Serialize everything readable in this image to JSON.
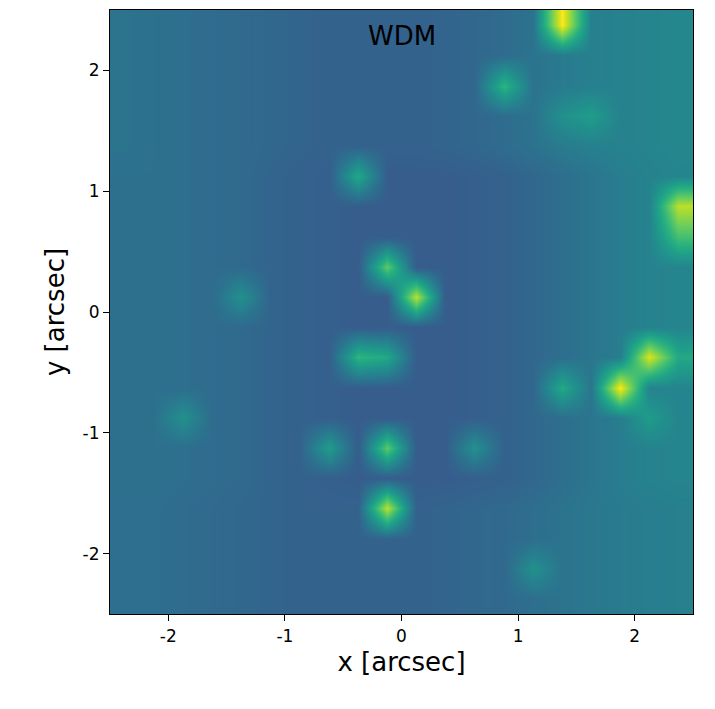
{
  "chart_data": {
    "type": "heatmap",
    "title": "WDM",
    "x_label": "x [arcsec]",
    "y_label": "y [arcsec]",
    "xlim": [
      -2.5,
      2.5
    ],
    "ylim": [
      -2.5,
      2.5
    ],
    "xticks": [
      -2,
      -1,
      0,
      1,
      2
    ],
    "yticks": [
      -2,
      -1,
      0,
      1,
      2
    ],
    "color": "Viridis",
    "cell_range": [
      0,
      1
    ],
    "x": [
      -2.375,
      -2.125,
      -1.875,
      -1.625,
      -1.375,
      -1.125,
      -0.875,
      -0.625,
      -0.375,
      -0.125,
      0.125,
      0.375,
      0.625,
      0.875,
      1.125,
      1.375,
      1.625,
      1.875,
      2.125,
      2.375
    ],
    "y": [
      -2.375,
      -2.125,
      -1.875,
      -1.625,
      -1.375,
      -1.125,
      -0.875,
      -0.625,
      -0.375,
      -0.125,
      0.125,
      0.375,
      0.625,
      0.875,
      1.125,
      1.375,
      1.625,
      1.875,
      2.125,
      2.375
    ],
    "cells": [
      [
        0.36,
        0.36,
        0.35,
        0.34,
        0.33,
        0.32,
        0.31,
        0.31,
        0.31,
        0.31,
        0.31,
        0.32,
        0.33,
        0.34,
        0.36,
        0.38,
        0.4,
        0.41,
        0.42,
        0.43
      ],
      [
        0.36,
        0.36,
        0.35,
        0.34,
        0.33,
        0.32,
        0.31,
        0.31,
        0.31,
        0.31,
        0.31,
        0.32,
        0.33,
        0.34,
        0.5,
        0.38,
        0.4,
        0.41,
        0.42,
        0.43
      ],
      [
        0.36,
        0.36,
        0.35,
        0.34,
        0.33,
        0.32,
        0.31,
        0.31,
        0.31,
        0.31,
        0.31,
        0.32,
        0.33,
        0.34,
        0.36,
        0.38,
        0.4,
        0.41,
        0.42,
        0.43
      ],
      [
        0.36,
        0.36,
        0.35,
        0.34,
        0.33,
        0.32,
        0.31,
        0.31,
        0.31,
        0.9,
        0.31,
        0.32,
        0.33,
        0.34,
        0.36,
        0.38,
        0.4,
        0.41,
        0.42,
        0.43
      ],
      [
        0.37,
        0.37,
        0.36,
        0.35,
        0.34,
        0.32,
        0.31,
        0.3,
        0.29,
        0.29,
        0.29,
        0.29,
        0.3,
        0.31,
        0.33,
        0.36,
        0.39,
        0.42,
        0.44,
        0.45
      ],
      [
        0.37,
        0.37,
        0.36,
        0.35,
        0.34,
        0.32,
        0.31,
        0.55,
        0.29,
        0.75,
        0.29,
        0.29,
        0.5,
        0.31,
        0.33,
        0.36,
        0.39,
        0.42,
        0.44,
        0.45
      ],
      [
        0.37,
        0.37,
        0.5,
        0.35,
        0.34,
        0.32,
        0.31,
        0.3,
        0.29,
        0.29,
        0.29,
        0.29,
        0.3,
        0.31,
        0.33,
        0.36,
        0.39,
        0.42,
        0.55,
        0.45
      ],
      [
        0.37,
        0.37,
        0.36,
        0.35,
        0.34,
        0.32,
        0.31,
        0.3,
        0.29,
        0.29,
        0.29,
        0.29,
        0.3,
        0.31,
        0.33,
        0.6,
        0.39,
        1.0,
        0.44,
        0.45
      ],
      [
        0.37,
        0.37,
        0.36,
        0.35,
        0.34,
        0.32,
        0.31,
        0.3,
        0.65,
        0.6,
        0.29,
        0.29,
        0.3,
        0.31,
        0.33,
        0.36,
        0.39,
        0.42,
        0.95,
        0.6
      ],
      [
        0.37,
        0.37,
        0.36,
        0.35,
        0.34,
        0.32,
        0.31,
        0.3,
        0.29,
        0.29,
        0.29,
        0.29,
        0.3,
        0.31,
        0.33,
        0.36,
        0.39,
        0.42,
        0.44,
        0.45
      ],
      [
        0.37,
        0.37,
        0.36,
        0.35,
        0.5,
        0.32,
        0.31,
        0.3,
        0.29,
        0.29,
        0.9,
        0.29,
        0.3,
        0.31,
        0.33,
        0.36,
        0.39,
        0.42,
        0.44,
        0.45
      ],
      [
        0.37,
        0.37,
        0.36,
        0.35,
        0.34,
        0.32,
        0.31,
        0.3,
        0.29,
        0.75,
        0.29,
        0.29,
        0.3,
        0.31,
        0.33,
        0.36,
        0.39,
        0.42,
        0.44,
        0.45
      ],
      [
        0.37,
        0.37,
        0.36,
        0.35,
        0.34,
        0.32,
        0.31,
        0.3,
        0.29,
        0.29,
        0.29,
        0.29,
        0.3,
        0.31,
        0.33,
        0.36,
        0.39,
        0.42,
        0.44,
        0.7
      ],
      [
        0.37,
        0.37,
        0.36,
        0.35,
        0.34,
        0.32,
        0.31,
        0.3,
        0.29,
        0.29,
        0.29,
        0.29,
        0.3,
        0.31,
        0.33,
        0.36,
        0.39,
        0.42,
        0.44,
        0.9
      ],
      [
        0.37,
        0.37,
        0.36,
        0.35,
        0.34,
        0.32,
        0.31,
        0.3,
        0.6,
        0.29,
        0.29,
        0.29,
        0.3,
        0.31,
        0.33,
        0.36,
        0.39,
        0.42,
        0.44,
        0.45
      ],
      [
        0.38,
        0.37,
        0.36,
        0.35,
        0.34,
        0.33,
        0.32,
        0.31,
        0.31,
        0.31,
        0.31,
        0.32,
        0.33,
        0.35,
        0.38,
        0.41,
        0.43,
        0.44,
        0.45,
        0.46
      ],
      [
        0.38,
        0.37,
        0.36,
        0.35,
        0.34,
        0.33,
        0.32,
        0.31,
        0.31,
        0.31,
        0.31,
        0.32,
        0.33,
        0.35,
        0.38,
        0.5,
        0.55,
        0.44,
        0.45,
        0.46
      ],
      [
        0.38,
        0.37,
        0.36,
        0.35,
        0.34,
        0.33,
        0.32,
        0.31,
        0.31,
        0.31,
        0.31,
        0.32,
        0.33,
        0.65,
        0.38,
        0.41,
        0.43,
        0.44,
        0.45,
        0.46
      ],
      [
        0.38,
        0.37,
        0.36,
        0.35,
        0.34,
        0.33,
        0.32,
        0.31,
        0.31,
        0.31,
        0.31,
        0.32,
        0.33,
        0.35,
        0.38,
        0.41,
        0.43,
        0.44,
        0.45,
        0.46
      ],
      [
        0.38,
        0.37,
        0.36,
        0.35,
        0.34,
        0.33,
        0.32,
        0.31,
        0.31,
        0.31,
        0.31,
        0.32,
        0.33,
        0.35,
        0.38,
        1.0,
        0.43,
        0.44,
        0.45,
        0.46
      ]
    ]
  }
}
